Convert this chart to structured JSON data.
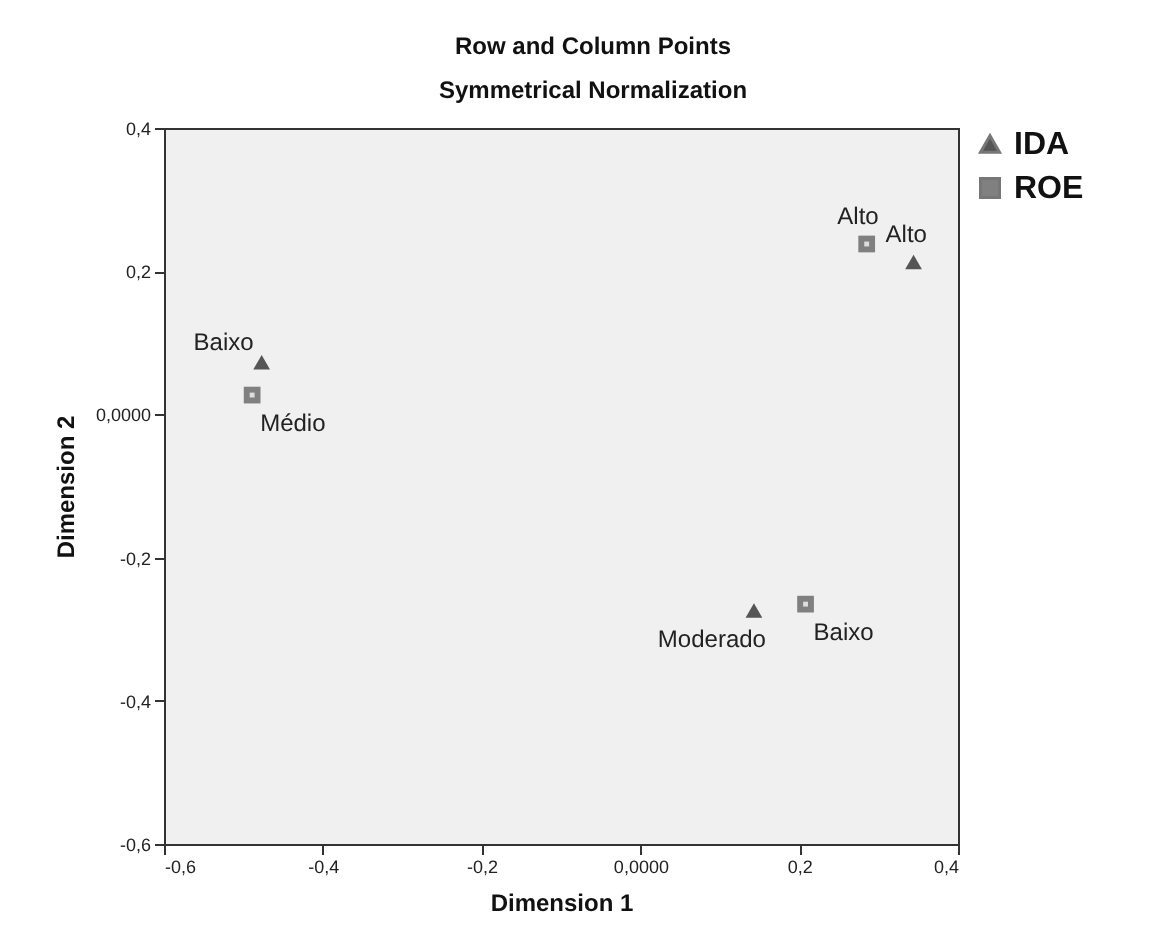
{
  "chart_data": {
    "type": "scatter",
    "title": "Row and Column Points",
    "subtitle": "Symmetrical Normalization",
    "xlabel": "Dimension 1",
    "ylabel": "Dimension 2",
    "xlim": [
      -0.6,
      0.4
    ],
    "xticks": [
      {
        "value": -0.6,
        "label": "-0,6"
      },
      {
        "value": -0.4,
        "label": "-0,4"
      },
      {
        "value": -0.2,
        "label": "-0,2"
      },
      {
        "value": 0,
        "label": "0,0000"
      },
      {
        "value": 0.2,
        "label": "0,2"
      },
      {
        "value": 0.4,
        "label": "0,4"
      }
    ],
    "ylim": [
      -0.6,
      0.4
    ],
    "yticks": [
      {
        "value": -0.6,
        "label": "-0,6"
      },
      {
        "value": -0.4,
        "label": "-0,4"
      },
      {
        "value": -0.2,
        "label": "-0,2"
      },
      {
        "value": 0,
        "label": "0,0000"
      },
      {
        "value": 0.2,
        "label": "0,2"
      },
      {
        "value": 0.4,
        "label": "0,4"
      }
    ],
    "grid": false,
    "legend": "top right",
    "series": [
      {
        "name": "IDA",
        "color": "#555555",
        "marker": "triangle",
        "x": [
          -0.477,
          0.344,
          0.143
        ],
        "values": [
          0.073,
          0.213,
          -0.274
        ]
      },
      {
        "name": "ROE",
        "color": "#808080",
        "marker": "square",
        "x": [
          -0.489,
          0.285,
          0.208
        ],
        "values": [
          0.027,
          0.238,
          -0.265
        ]
      }
    ],
    "annotations": [
      {
        "text": "Baixo",
        "x": -0.477,
        "y": 0.073
      },
      {
        "text": "Alto",
        "x": 0.344,
        "y": 0.213
      },
      {
        "text": "Moderado",
        "x": 0.143,
        "y": -0.274
      },
      {
        "text": "Médio",
        "x": -0.489,
        "y": 0.027
      },
      {
        "text": "Alto",
        "x": 0.285,
        "y": 0.238
      },
      {
        "text": "Baixo",
        "x": 0.208,
        "y": -0.265
      }
    ]
  }
}
